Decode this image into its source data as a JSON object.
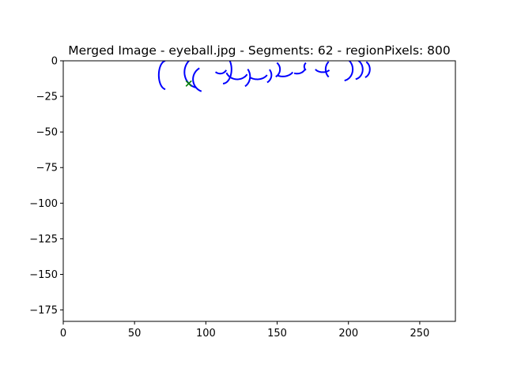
{
  "chart_data": {
    "type": "line",
    "title": "Merged Image - eyeball.jpg - Segments: 62 - regionPixels: 800",
    "xlabel": "",
    "ylabel": "",
    "xlim": [
      0,
      275
    ],
    "ylim": [
      -183,
      0
    ],
    "xticks": [
      0,
      50,
      100,
      150,
      200,
      250
    ],
    "xtick_labels": [
      "0",
      "50",
      "100",
      "150",
      "200",
      "250"
    ],
    "yticks": [
      0,
      -25,
      -50,
      -75,
      -100,
      -125,
      -150,
      -175
    ],
    "ytick_labels": [
      "0",
      "−25",
      "−50",
      "−75",
      "−100",
      "−125",
      "−150",
      "−175"
    ],
    "grid": false,
    "legend": "none",
    "series_color": "#0000ff",
    "marker_color": "#008000",
    "arcs": [
      {
        "cx": 72,
        "cy": -10,
        "rx": 5,
        "ry": 10,
        "start": 95,
        "end": 265
      },
      {
        "cx": 95,
        "cy": -8,
        "rx": 10,
        "ry": 11,
        "start": 100,
        "end": 260
      },
      {
        "cx": 100,
        "cy": -13,
        "rx": 9,
        "ry": 9,
        "start": 120,
        "end": 250
      },
      {
        "cx": 110,
        "cy": -4,
        "rx": 5,
        "ry": 5,
        "start": 230,
        "end": 330
      },
      {
        "cx": 112,
        "cy": -6,
        "rx": 6,
        "ry": 10,
        "start": 270,
        "end": 400
      },
      {
        "cx": 122,
        "cy": -6,
        "rx": 8,
        "ry": 7,
        "start": 200,
        "end": 330
      },
      {
        "cx": 124,
        "cy": -11,
        "rx": 7,
        "ry": 8,
        "start": 300,
        "end": 400
      },
      {
        "cx": 136,
        "cy": -7,
        "rx": 8,
        "ry": 6,
        "start": 230,
        "end": 330
      },
      {
        "cx": 140,
        "cy": -10,
        "rx": 6,
        "ry": 6,
        "start": 300,
        "end": 400
      },
      {
        "cx": 154,
        "cy": -5,
        "rx": 8,
        "ry": 6,
        "start": 240,
        "end": 330
      },
      {
        "cx": 146,
        "cy": -6,
        "rx": 6,
        "ry": 6,
        "start": 300,
        "end": 410
      },
      {
        "cx": 164,
        "cy": -4,
        "rx": 6,
        "ry": 5,
        "start": 250,
        "end": 340
      },
      {
        "cx": 174,
        "cy": -4,
        "rx": 5,
        "ry": 4,
        "start": 140,
        "end": 220
      },
      {
        "cx": 182,
        "cy": -4,
        "rx": 6,
        "ry": 4,
        "start": 210,
        "end": 320
      },
      {
        "cx": 190,
        "cy": -6,
        "rx": 6,
        "ry": 7,
        "start": 130,
        "end": 230
      },
      {
        "cx": 196,
        "cy": -6,
        "rx": 7,
        "ry": 8,
        "start": 280,
        "end": 420
      },
      {
        "cx": 204,
        "cy": -6,
        "rx": 6,
        "ry": 7,
        "start": 280,
        "end": 420
      },
      {
        "cx": 210,
        "cy": -6,
        "rx": 5,
        "ry": 6,
        "start": 290,
        "end": 420
      }
    ],
    "markers": [
      {
        "x": 88,
        "y": -16,
        "symbol": "x"
      }
    ]
  }
}
